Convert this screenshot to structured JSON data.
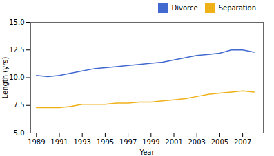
{
  "chart_data": {
    "type": "line",
    "xlabel": "Year",
    "ylabel": "Length (yrs)",
    "x": [
      1989,
      1990,
      1991,
      1992,
      1993,
      1994,
      1995,
      1996,
      1997,
      1998,
      1999,
      2000,
      2001,
      2002,
      2003,
      2004,
      2005,
      2006,
      2007,
      2008
    ],
    "series": [
      {
        "name": "Divorce",
        "values": [
          10.2,
          10.1,
          10.2,
          10.4,
          10.6,
          10.8,
          10.9,
          11.0,
          11.1,
          11.2,
          11.3,
          11.4,
          11.6,
          11.8,
          12.0,
          12.1,
          12.2,
          12.5,
          12.5,
          12.3
        ]
      },
      {
        "name": "Separation",
        "values": [
          7.3,
          7.3,
          7.3,
          7.4,
          7.6,
          7.6,
          7.6,
          7.7,
          7.7,
          7.8,
          7.8,
          7.9,
          8.0,
          8.1,
          8.3,
          8.5,
          8.6,
          8.7,
          8.8,
          8.7
        ]
      }
    ],
    "xlim": [
      1988.5,
      2008.8
    ],
    "xticks": [
      1989,
      1991,
      1993,
      1995,
      1997,
      1999,
      2001,
      2003,
      2005,
      2007
    ],
    "ylim": [
      5.0,
      15.0
    ],
    "yticks": [
      {
        "value": 5.0,
        "label": "5.0"
      },
      7.5,
      {
        "value": 10.0,
        "label": "10.0"
      },
      12.5,
      {
        "value": 15.0,
        "label": "15.0"
      }
    ],
    "grid": false,
    "legend": "upper right"
  }
}
